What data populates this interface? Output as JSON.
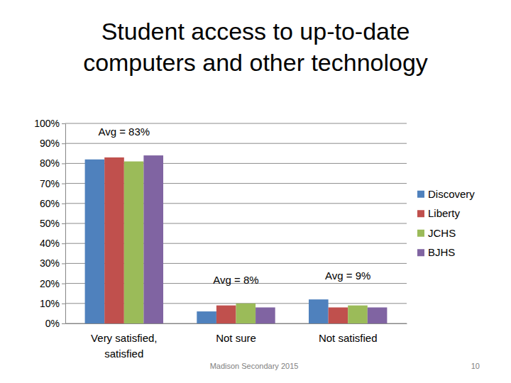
{
  "chart_data": {
    "type": "bar",
    "title": "Student access to up-to-date computers and other technology",
    "categories": [
      "Very satisfied, satisfied",
      "Not sure",
      "Not satisfied"
    ],
    "series": [
      {
        "name": "Discovery",
        "color": "#4f81bd",
        "values": [
          82,
          6,
          12
        ]
      },
      {
        "name": "Liberty",
        "color": "#c0504d",
        "values": [
          83,
          9,
          8
        ]
      },
      {
        "name": "JCHS",
        "color": "#9bbb59",
        "values": [
          81,
          10,
          9
        ]
      },
      {
        "name": "BJHS",
        "color": "#8064a2",
        "values": [
          84,
          8,
          8
        ]
      }
    ],
    "ylim": [
      0,
      100
    ],
    "yticks": [
      {
        "value": 0,
        "label": "0%"
      },
      {
        "value": 10,
        "label": "10%"
      },
      {
        "value": 20,
        "label": "20%"
      },
      {
        "value": 30,
        "label": "30%"
      },
      {
        "value": 40,
        "label": "40%"
      },
      {
        "value": 50,
        "label": "50%"
      },
      {
        "value": 60,
        "label": "60%"
      },
      {
        "value": 70,
        "label": "70%"
      },
      {
        "value": 80,
        "label": "80%"
      },
      {
        "value": 90,
        "label": "90%"
      },
      {
        "value": 100,
        "label": "100%"
      }
    ],
    "grid": true,
    "legend": "right",
    "annotations": [
      {
        "text": "Avg = 83%",
        "category": "Very satisfied, satisfied"
      },
      {
        "text": "Avg = 8%",
        "category": "Not sure"
      },
      {
        "text": "Avg = 9%",
        "category": "Not satisfied"
      }
    ],
    "footer": "Madison Secondary 2015",
    "page_number": "10"
  }
}
